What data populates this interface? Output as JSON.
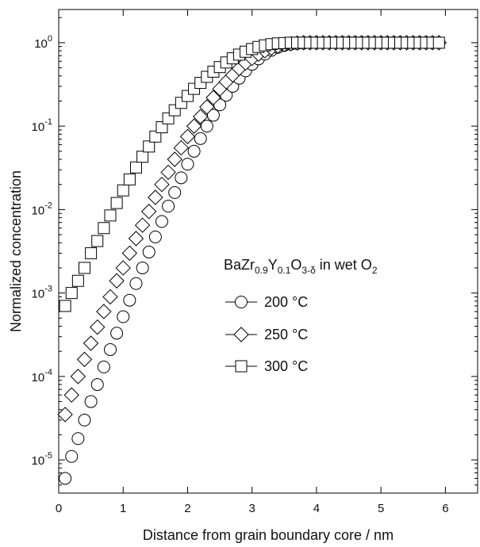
{
  "chart_data": {
    "type": "scatter",
    "title": "",
    "xlabel": "Distance from grain boundary core / nm",
    "ylabel": "Normalized concentration",
    "xlim": [
      0,
      6.5
    ],
    "ylim": [
      4e-06,
      2.5
    ],
    "yscale": "log",
    "x_ticks": [
      0,
      1,
      2,
      3,
      4,
      5,
      6
    ],
    "y_ticks": [
      {
        "base": "10",
        "exp": "-5"
      },
      {
        "base": "10",
        "exp": "-4"
      },
      {
        "base": "10",
        "exp": "-3"
      },
      {
        "base": "10",
        "exp": "-2"
      },
      {
        "base": "10",
        "exp": "-1"
      },
      {
        "base": "10",
        "exp": "0"
      }
    ],
    "y_tick_values": [
      1e-05,
      0.0001,
      0.001,
      0.01,
      0.1,
      1
    ],
    "grid": false,
    "legend": {
      "placement": "center-right",
      "title_parts": {
        "t1": "BaZr",
        "s1": "0.9",
        "t2": "Y",
        "s2": "0.1",
        "t3": "O",
        "s3": "3-δ",
        "t4": " in wet O",
        "s4": "2"
      },
      "entries": [
        "200 °C",
        "250 °C",
        "300 °C"
      ]
    },
    "series": [
      {
        "name": "200 °C",
        "marker": "circle",
        "x": [
          0.1,
          0.2,
          0.3,
          0.4,
          0.5,
          0.6,
          0.7,
          0.8,
          0.9,
          1.0,
          1.1,
          1.2,
          1.3,
          1.4,
          1.5,
          1.6,
          1.7,
          1.8,
          1.9,
          2.0,
          2.1,
          2.2,
          2.3,
          2.4,
          2.5,
          2.6,
          2.7,
          2.8,
          2.9,
          3.0,
          3.1,
          3.2,
          3.3,
          3.4,
          3.5,
          3.6,
          3.7,
          3.8,
          3.9,
          4.0,
          4.1,
          4.2,
          4.3,
          4.4,
          4.5,
          4.6,
          4.7,
          4.8,
          4.9,
          5.0,
          5.1,
          5.2,
          5.3,
          5.4,
          5.5,
          5.6,
          5.7,
          5.8,
          5.9
        ],
        "y": [
          6e-06,
          1.1e-05,
          1.8e-05,
          3e-05,
          5e-05,
          8e-05,
          0.00013,
          0.00021,
          0.00033,
          0.00052,
          0.00082,
          0.0013,
          0.002,
          0.0031,
          0.0047,
          0.0072,
          0.011,
          0.016,
          0.024,
          0.035,
          0.05,
          0.071,
          0.1,
          0.135,
          0.18,
          0.235,
          0.3,
          0.375,
          0.46,
          0.55,
          0.64,
          0.73,
          0.81,
          0.88,
          0.93,
          0.96,
          0.98,
          0.99,
          1,
          1,
          1,
          1,
          1,
          1,
          1,
          1,
          1,
          1,
          1,
          1,
          1,
          1,
          1,
          1,
          1,
          1,
          1,
          1,
          1
        ]
      },
      {
        "name": "250 °C",
        "marker": "diamond",
        "x": [
          0.1,
          0.2,
          0.3,
          0.4,
          0.5,
          0.6,
          0.7,
          0.8,
          0.9,
          1.0,
          1.1,
          1.2,
          1.3,
          1.4,
          1.5,
          1.6,
          1.7,
          1.8,
          1.9,
          2.0,
          2.1,
          2.2,
          2.3,
          2.4,
          2.5,
          2.6,
          2.7,
          2.8,
          2.9,
          3.0,
          3.1,
          3.2,
          3.3,
          3.4,
          3.5,
          3.6,
          3.7,
          3.8,
          3.9,
          4.0,
          4.1,
          4.2,
          4.3,
          4.4,
          4.5,
          4.6,
          4.7,
          4.8,
          4.9,
          5.0,
          5.1,
          5.2,
          5.3,
          5.4,
          5.5,
          5.6,
          5.7,
          5.8,
          5.9
        ],
        "y": [
          3.5e-05,
          6e-05,
          0.0001,
          0.00016,
          0.00025,
          0.00039,
          0.0006,
          0.0009,
          0.0014,
          0.002,
          0.003,
          0.0045,
          0.0065,
          0.0095,
          0.014,
          0.02,
          0.028,
          0.04,
          0.055,
          0.075,
          0.1,
          0.13,
          0.17,
          0.22,
          0.28,
          0.34,
          0.41,
          0.49,
          0.57,
          0.65,
          0.73,
          0.8,
          0.86,
          0.91,
          0.95,
          0.97,
          0.99,
          1,
          1,
          1,
          1,
          1,
          1,
          1,
          1,
          1,
          1,
          1,
          1,
          1,
          1,
          1,
          1,
          1,
          1,
          1,
          1,
          1,
          1
        ]
      },
      {
        "name": "300 °C",
        "marker": "square",
        "x": [
          0.1,
          0.2,
          0.3,
          0.4,
          0.5,
          0.6,
          0.7,
          0.8,
          0.9,
          1.0,
          1.1,
          1.2,
          1.3,
          1.4,
          1.5,
          1.6,
          1.7,
          1.8,
          1.9,
          2.0,
          2.1,
          2.2,
          2.3,
          2.4,
          2.5,
          2.6,
          2.7,
          2.8,
          2.9,
          3.0,
          3.1,
          3.2,
          3.3,
          3.4,
          3.5,
          3.6,
          3.7,
          3.8,
          3.9,
          4.0,
          4.1,
          4.2,
          4.3,
          4.4,
          4.5,
          4.6,
          4.7,
          4.8,
          4.9,
          5.0,
          5.1,
          5.2,
          5.3,
          5.4,
          5.5,
          5.6,
          5.7,
          5.8,
          5.9
        ],
        "y": [
          0.0007,
          0.001,
          0.0014,
          0.002,
          0.003,
          0.0042,
          0.006,
          0.0085,
          0.012,
          0.017,
          0.023,
          0.032,
          0.043,
          0.057,
          0.075,
          0.097,
          0.124,
          0.155,
          0.19,
          0.23,
          0.28,
          0.33,
          0.39,
          0.45,
          0.51,
          0.58,
          0.65,
          0.72,
          0.78,
          0.84,
          0.89,
          0.93,
          0.96,
          0.98,
          0.99,
          1,
          1,
          1,
          1,
          1,
          1,
          1,
          1,
          1,
          1,
          1,
          1,
          1,
          1,
          1,
          1,
          1,
          1,
          1,
          1,
          1,
          1,
          1,
          1
        ]
      }
    ]
  }
}
